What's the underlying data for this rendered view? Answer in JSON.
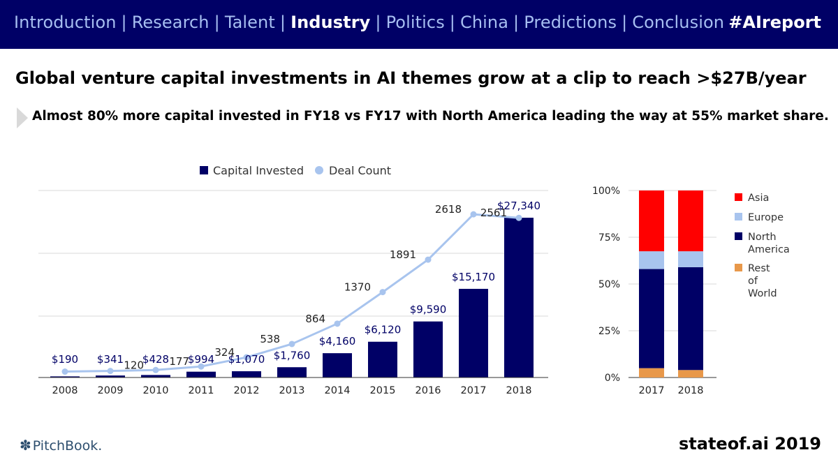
{
  "nav": {
    "items": [
      {
        "label": "Introduction",
        "active": false
      },
      {
        "label": "Research",
        "active": false
      },
      {
        "label": "Talent",
        "active": false
      },
      {
        "label": "Industry",
        "active": true
      },
      {
        "label": "Politics",
        "active": false
      },
      {
        "label": "China",
        "active": false
      },
      {
        "label": "Predictions",
        "active": false
      },
      {
        "label": "Conclusion",
        "active": false
      }
    ],
    "separator": "|",
    "hashtag": "#AIreport"
  },
  "headline": "Global venture capital investments in AI themes grow at a clip to reach >$27B/year",
  "subheadline": "Almost 80% more capital invested in FY18 vs FY17 with North America leading the way at 55% market share.",
  "footer": {
    "logo": "PitchBook.",
    "brand": "stateof.ai 2019"
  },
  "colors": {
    "nav_bg": "#000066",
    "nav_text": "#a7bff1",
    "bar": "#000066",
    "line": "#a8c4ee",
    "asia": "#ff0000",
    "europe": "#a8c4ee",
    "north_america": "#000066",
    "rest_of_world": "#e8984a"
  },
  "chart_data": [
    {
      "type": "bar",
      "title": "",
      "categories": [
        "2008",
        "2009",
        "2010",
        "2011",
        "2012",
        "2013",
        "2014",
        "2015",
        "2016",
        "2017",
        "2018"
      ],
      "series": [
        {
          "name": "Capital Invested",
          "kind": "bar",
          "values": [
            190,
            341,
            428,
            994,
            1070,
            1760,
            4160,
            6120,
            9590,
            15170,
            27340
          ],
          "labels": [
            "$190",
            "$341",
            "$428",
            "$994",
            "$1,070",
            "$1,760",
            "$4,160",
            "$6,120",
            "$9,590",
            "$15,170",
            "$27,340"
          ]
        },
        {
          "name": "Deal Count",
          "kind": "line",
          "values": [
            95,
            105,
            120,
            177,
            324,
            538,
            864,
            1370,
            1891,
            2618,
            2561
          ],
          "labels": [
            null,
            null,
            "120",
            "177",
            "324",
            "538",
            "864",
            "1370",
            "1891",
            "2618",
            "2561"
          ]
        }
      ],
      "legend": "top",
      "bar_ylim": [
        0,
        32000
      ],
      "line_ylim": [
        0,
        3000
      ],
      "grid": true
    },
    {
      "type": "bar",
      "stacked": true,
      "categories": [
        "2017",
        "2018"
      ],
      "series": [
        {
          "name": "Rest of World",
          "values": [
            5,
            4
          ]
        },
        {
          "name": "North America",
          "values": [
            53,
            55
          ]
        },
        {
          "name": "Europe",
          "values": [
            9.5,
            8.5
          ]
        },
        {
          "name": "Asia",
          "values": [
            32.5,
            32.5
          ]
        }
      ],
      "legend_order": [
        "Asia",
        "Europe",
        "North America",
        "Rest of World"
      ],
      "yticks": [
        "0%",
        "25%",
        "50%",
        "75%",
        "100%"
      ],
      "ylim": [
        0,
        100
      ],
      "legend": "right"
    }
  ]
}
